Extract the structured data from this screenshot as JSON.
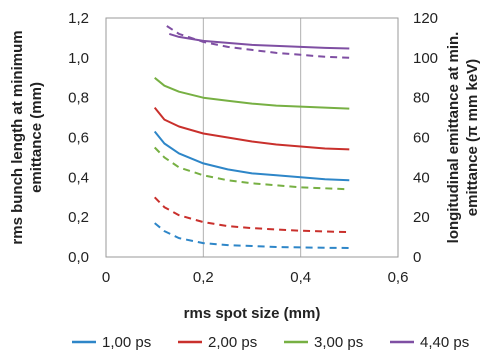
{
  "chart_data": {
    "type": "line",
    "xlabel": "rms spot size (mm)",
    "ylabel_left_lines": [
      "rms bunch length at minimum",
      "emittance (mm)"
    ],
    "ylabel_right_lines": [
      "longitudinal emittance at min.",
      "emittance (π mm keV)"
    ],
    "xlim": [
      0,
      0.6
    ],
    "ylim_left": [
      0,
      1.2
    ],
    "ylim_right": [
      0,
      120
    ],
    "x_ticks": [
      "0",
      "0,2",
      "0,4",
      "0,6"
    ],
    "y_left_ticks": [
      "0,0",
      "0,2",
      "0,4",
      "0,6",
      "0,8",
      "1,0",
      "1,2"
    ],
    "y_right_ticks": [
      "0",
      "20",
      "40",
      "60",
      "80",
      "100",
      "120"
    ],
    "grid": "vertical",
    "legend_position": "bottom",
    "legend": [
      {
        "label": "1,00 ps",
        "color": "#2e86c8"
      },
      {
        "label": "2,00 ps",
        "color": "#c9302c"
      },
      {
        "label": "3,00 ps",
        "color": "#77b043"
      },
      {
        "label": "4,40 ps",
        "color": "#7f4fa3"
      }
    ],
    "series": [
      {
        "group": "1,00 ps",
        "style": "solid",
        "axis": "left",
        "color": "#2e86c8",
        "x": [
          0.1,
          0.12,
          0.15,
          0.2,
          0.25,
          0.3,
          0.35,
          0.4,
          0.45,
          0.5
        ],
        "y": [
          0.63,
          0.57,
          0.52,
          0.47,
          0.44,
          0.42,
          0.41,
          0.4,
          0.39,
          0.385
        ]
      },
      {
        "group": "2,00 ps",
        "style": "solid",
        "axis": "left",
        "color": "#c9302c",
        "x": [
          0.1,
          0.12,
          0.15,
          0.2,
          0.25,
          0.3,
          0.35,
          0.4,
          0.45,
          0.5
        ],
        "y": [
          0.75,
          0.69,
          0.655,
          0.62,
          0.6,
          0.58,
          0.565,
          0.555,
          0.545,
          0.54
        ]
      },
      {
        "group": "3,00 ps",
        "style": "solid",
        "axis": "left",
        "color": "#77b043",
        "x": [
          0.1,
          0.12,
          0.15,
          0.2,
          0.25,
          0.3,
          0.35,
          0.4,
          0.45,
          0.5
        ],
        "y": [
          0.9,
          0.86,
          0.83,
          0.8,
          0.785,
          0.77,
          0.76,
          0.755,
          0.75,
          0.745
        ]
      },
      {
        "group": "4,40 ps",
        "style": "solid",
        "axis": "left",
        "color": "#7f4fa3",
        "x": [
          0.13,
          0.15,
          0.2,
          0.25,
          0.3,
          0.35,
          0.4,
          0.45,
          0.5
        ],
        "y": [
          1.12,
          1.105,
          1.085,
          1.075,
          1.065,
          1.06,
          1.055,
          1.05,
          1.047
        ]
      },
      {
        "group": "1,00 ps",
        "style": "dashed",
        "axis": "right",
        "color": "#2e86c8",
        "x": [
          0.1,
          0.12,
          0.15,
          0.2,
          0.25,
          0.3,
          0.35,
          0.4,
          0.45,
          0.5
        ],
        "y": [
          17,
          13,
          9.5,
          7,
          6,
          5.5,
          5,
          4.8,
          4.6,
          4.5
        ]
      },
      {
        "group": "2,00 ps",
        "style": "dashed",
        "axis": "right",
        "color": "#c9302c",
        "x": [
          0.1,
          0.12,
          0.15,
          0.2,
          0.25,
          0.3,
          0.35,
          0.4,
          0.45,
          0.5
        ],
        "y": [
          30,
          25,
          21,
          17.5,
          15.5,
          14.5,
          13.8,
          13.2,
          12.8,
          12.5
        ]
      },
      {
        "group": "3,00 ps",
        "style": "dashed",
        "axis": "right",
        "color": "#77b043",
        "x": [
          0.1,
          0.12,
          0.15,
          0.2,
          0.25,
          0.3,
          0.35,
          0.4,
          0.45,
          0.5
        ],
        "y": [
          55,
          50,
          45,
          41,
          38.5,
          37,
          36,
          35,
          34.5,
          34
        ]
      },
      {
        "group": "4,40 ps",
        "style": "dashed",
        "axis": "right",
        "color": "#7f4fa3",
        "x": [
          0.125,
          0.15,
          0.2,
          0.25,
          0.3,
          0.35,
          0.4,
          0.45,
          0.5
        ],
        "y": [
          116,
          112,
          108,
          105.5,
          104,
          102.5,
          101.5,
          100.5,
          100
        ]
      }
    ]
  }
}
